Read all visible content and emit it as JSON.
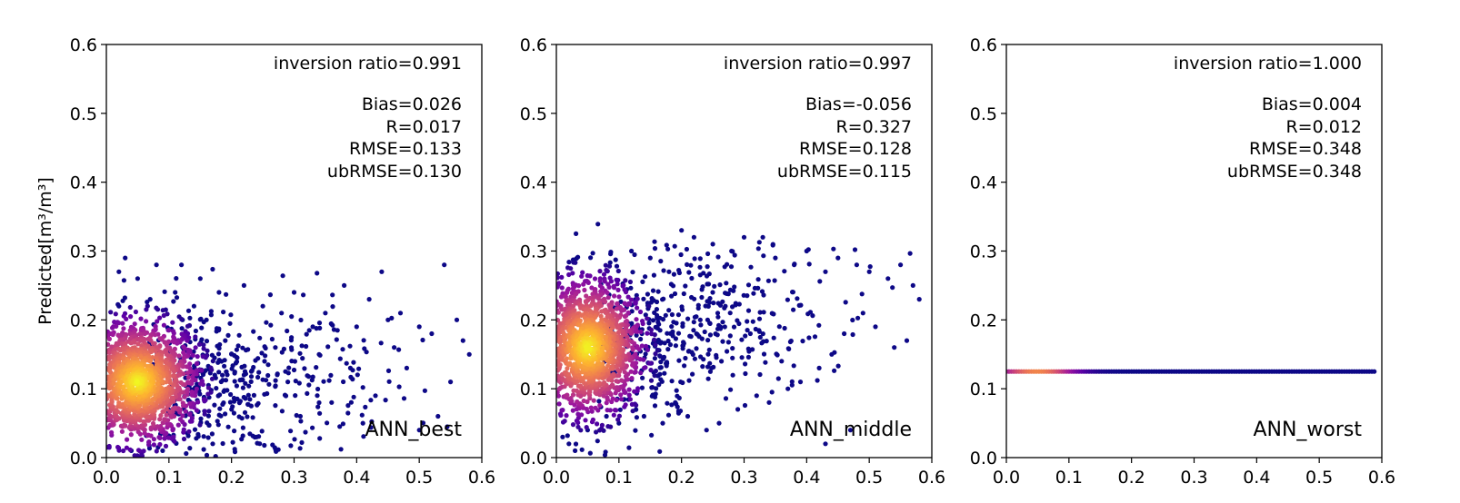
{
  "chart_data": [
    {
      "type": "scatter",
      "panel_label": "ANN_best",
      "xlabel": "",
      "ylabel": "Predicted[m³/m³]",
      "xlim": [
        0.0,
        0.6
      ],
      "ylim": [
        0.0,
        0.6
      ],
      "xticks": [
        "0.0",
        "0.1",
        "0.2",
        "0.3",
        "0.4",
        "0.5",
        "0.6"
      ],
      "yticks": [
        "0.0",
        "0.1",
        "0.2",
        "0.3",
        "0.4",
        "0.5",
        "0.6"
      ],
      "stats": [
        "inversion ratio=0.991",
        "Bias=0.026",
        "R=0.017",
        "RMSE=0.133",
        "ubRMSE=0.130"
      ],
      "colormap": [
        "#0d0887",
        "#5c01a6",
        "#9c179e",
        "#cc4778",
        "#ed7953",
        "#fdb42f",
        "#f0f921"
      ],
      "cluster": {
        "x_center": 0.05,
        "y_center": 0.11,
        "x_spread": 0.05,
        "y_spread": 0.045
      },
      "points": [
        [
          0.02,
          0.27
        ],
        [
          0.03,
          0.29
        ],
        [
          0.05,
          0.26
        ],
        [
          0.08,
          0.28
        ],
        [
          0.12,
          0.28
        ],
        [
          0.15,
          0.26
        ],
        [
          0.18,
          0.24
        ],
        [
          0.22,
          0.25
        ],
        [
          0.25,
          0.22
        ],
        [
          0.28,
          0.21
        ],
        [
          0.3,
          0.24
        ],
        [
          0.33,
          0.19
        ],
        [
          0.35,
          0.21
        ],
        [
          0.38,
          0.25
        ],
        [
          0.4,
          0.19
        ],
        [
          0.42,
          0.23
        ],
        [
          0.44,
          0.27
        ],
        [
          0.45,
          0.2
        ],
        [
          0.47,
          0.21
        ],
        [
          0.5,
          0.19
        ],
        [
          0.52,
          0.18
        ],
        [
          0.54,
          0.28
        ],
        [
          0.56,
          0.2
        ],
        [
          0.57,
          0.17
        ],
        [
          0.58,
          0.15
        ],
        [
          0.55,
          0.11
        ],
        [
          0.53,
          0.06
        ],
        [
          0.5,
          0.04
        ],
        [
          0.48,
          0.13
        ],
        [
          0.46,
          0.16
        ],
        [
          0.43,
          0.09
        ],
        [
          0.41,
          0.05
        ],
        [
          0.39,
          0.13
        ],
        [
          0.36,
          0.08
        ],
        [
          0.34,
          0.15
        ],
        [
          0.31,
          0.06
        ],
        [
          0.29,
          0.11
        ],
        [
          0.27,
          0.16
        ],
        [
          0.24,
          0.03
        ],
        [
          0.22,
          0.12
        ],
        [
          0.2,
          0.07
        ],
        [
          0.19,
          0.17
        ],
        [
          0.17,
          0.02
        ],
        [
          0.16,
          0.2
        ],
        [
          0.14,
          0.22
        ],
        [
          0.11,
          0.24
        ],
        [
          0.09,
          0.01
        ],
        [
          0.07,
          0.23
        ],
        [
          0.04,
          0.01
        ],
        [
          0.02,
          0.22
        ]
      ]
    },
    {
      "type": "scatter",
      "panel_label": "ANN_middle",
      "xlabel": "",
      "ylabel": "",
      "xlim": [
        0.0,
        0.6
      ],
      "ylim": [
        0.0,
        0.6
      ],
      "xticks": [
        "0.0",
        "0.1",
        "0.2",
        "0.3",
        "0.4",
        "0.5",
        "0.6"
      ],
      "yticks": [
        "0.0",
        "0.1",
        "0.2",
        "0.3",
        "0.4",
        "0.5",
        "0.6"
      ],
      "stats": [
        "inversion ratio=0.997",
        "Bias=-0.056",
        "R=0.327",
        "RMSE=0.128",
        "ubRMSE=0.115"
      ],
      "colormap": [
        "#0d0887",
        "#5c01a6",
        "#9c179e",
        "#cc4778",
        "#ed7953",
        "#fdb42f",
        "#f0f921"
      ],
      "cluster": {
        "x_center": 0.05,
        "y_center": 0.16,
        "x_spread": 0.045,
        "y_spread": 0.05
      },
      "points": [
        [
          0.01,
          0.03
        ],
        [
          0.02,
          0.02
        ],
        [
          0.03,
          0.01
        ],
        [
          0.05,
          0.04
        ],
        [
          0.08,
          0.06
        ],
        [
          0.1,
          0.05
        ],
        [
          0.14,
          0.06
        ],
        [
          0.17,
          0.05
        ],
        [
          0.2,
          0.33
        ],
        [
          0.22,
          0.32
        ],
        [
          0.25,
          0.31
        ],
        [
          0.28,
          0.3
        ],
        [
          0.3,
          0.32
        ],
        [
          0.33,
          0.32
        ],
        [
          0.35,
          0.29
        ],
        [
          0.38,
          0.28
        ],
        [
          0.4,
          0.3
        ],
        [
          0.43,
          0.27
        ],
        [
          0.45,
          0.29
        ],
        [
          0.48,
          0.28
        ],
        [
          0.5,
          0.27
        ],
        [
          0.53,
          0.26
        ],
        [
          0.55,
          0.28
        ],
        [
          0.57,
          0.25
        ],
        [
          0.58,
          0.23
        ],
        [
          0.56,
          0.17
        ],
        [
          0.54,
          0.16
        ],
        [
          0.51,
          0.19
        ],
        [
          0.49,
          0.21
        ],
        [
          0.46,
          0.18
        ],
        [
          0.44,
          0.15
        ],
        [
          0.42,
          0.13
        ],
        [
          0.39,
          0.11
        ],
        [
          0.37,
          0.1
        ],
        [
          0.34,
          0.08
        ],
        [
          0.32,
          0.09
        ],
        [
          0.29,
          0.07
        ],
        [
          0.26,
          0.05
        ],
        [
          0.24,
          0.04
        ],
        [
          0.21,
          0.06
        ],
        [
          0.19,
          0.08
        ],
        [
          0.43,
          0.02
        ],
        [
          0.47,
          0.04
        ],
        [
          0.36,
          0.14
        ],
        [
          0.31,
          0.18
        ],
        [
          0.27,
          0.22
        ],
        [
          0.23,
          0.2
        ],
        [
          0.18,
          0.27
        ],
        [
          0.15,
          0.29
        ],
        [
          0.12,
          0.3
        ]
      ]
    },
    {
      "type": "scatter",
      "panel_label": "ANN_worst",
      "xlabel": "",
      "ylabel": "",
      "xlim": [
        0.0,
        0.6
      ],
      "ylim": [
        0.0,
        0.6
      ],
      "xticks": [
        "0.0",
        "0.1",
        "0.2",
        "0.3",
        "0.4",
        "0.5",
        "0.6"
      ],
      "yticks": [
        "0.0",
        "0.1",
        "0.2",
        "0.3",
        "0.4",
        "0.5",
        "0.6"
      ],
      "stats": [
        "inversion ratio=1.000",
        "Bias=0.004",
        "R=0.012",
        "RMSE=0.348",
        "ubRMSE=0.348"
      ],
      "colormap": [
        "#0d0887",
        "#5c01a6",
        "#9c179e",
        "#cc4778",
        "#ed7953",
        "#fdb42f",
        "#f0f921"
      ],
      "constant_prediction": 0.125,
      "x_range": [
        0.0,
        0.59
      ]
    }
  ]
}
